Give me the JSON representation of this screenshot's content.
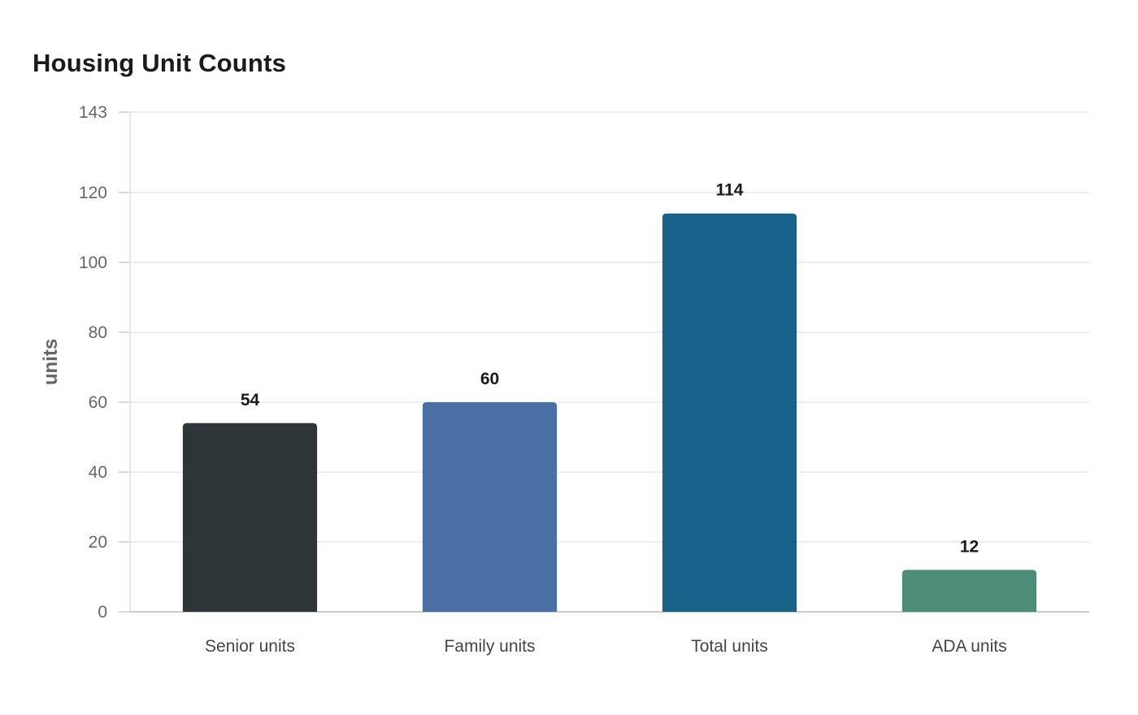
{
  "chart_data": {
    "type": "bar",
    "title": "Housing Unit Counts",
    "ylabel": "units",
    "xlabel": "",
    "categories": [
      "Senior units",
      "Family units",
      "Total units",
      "ADA units"
    ],
    "values": [
      54,
      60,
      114,
      12
    ],
    "colors": [
      "#2e3538",
      "#4a6fa5",
      "#186188",
      "#4e8c7a"
    ],
    "ylim": [
      0,
      143
    ],
    "yticks": [
      0,
      20,
      40,
      60,
      80,
      100,
      120,
      143
    ],
    "grid": true,
    "legend": "none"
  }
}
